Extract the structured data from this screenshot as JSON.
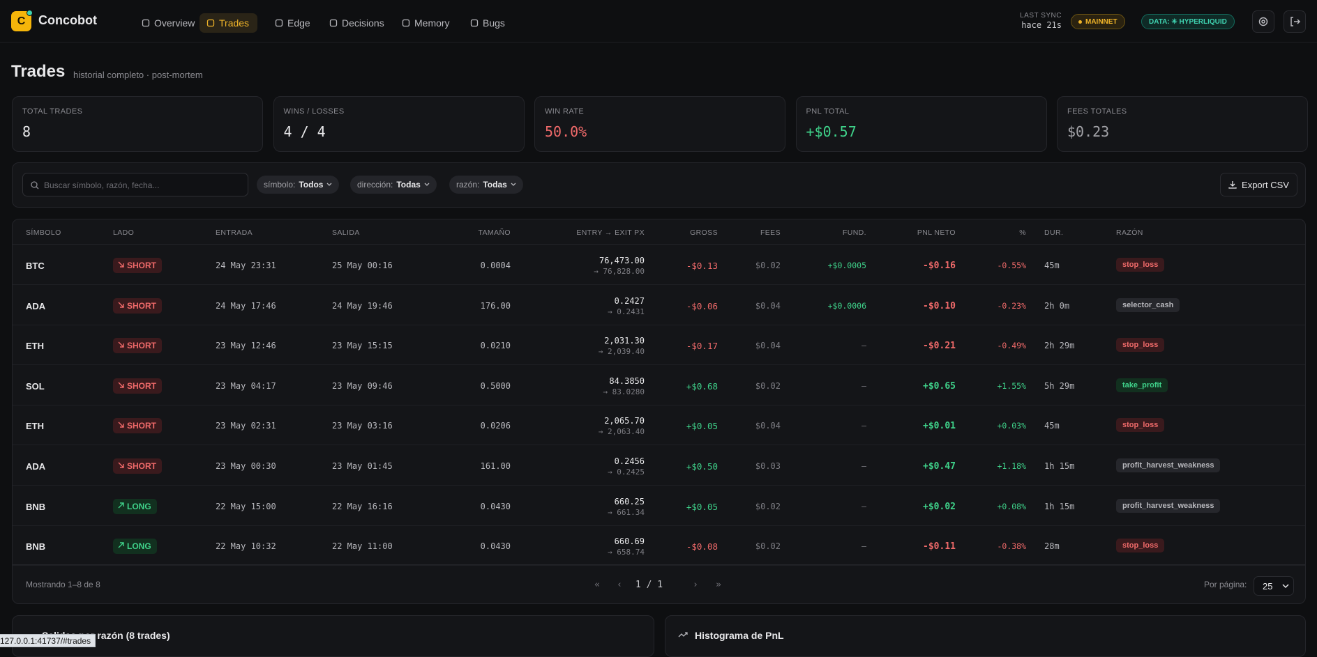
{
  "header": {
    "logo": "C",
    "brand": "Concobot",
    "nav": [
      "Overview",
      "Trades",
      "Edge",
      "Decisions",
      "Memory",
      "Bugs"
    ],
    "active_nav": 1,
    "sync_label": "LAST SYNC",
    "sync_value": "hace 21s",
    "network_badge": "MAINNET",
    "data_badge": "DATA: ✳ HYPERLIQUID"
  },
  "page": {
    "title": "Trades",
    "subtitle": "historial completo · post-mortem"
  },
  "stats": [
    {
      "label": "TOTAL TRADES",
      "value": "8",
      "color": "#e8e8ea"
    },
    {
      "label": "WINS / LOSSES",
      "value": "4 / 4",
      "color": "#e8e8ea"
    },
    {
      "label": "WIN RATE",
      "value": "50.0%",
      "color": "#f06a6a"
    },
    {
      "label": "PNL TOTAL",
      "value": "+$0.57",
      "color": "#3fd28a"
    },
    {
      "label": "FEES TOTALES",
      "value": "$0.23",
      "color": "#a3a3a8"
    }
  ],
  "filters": {
    "search_placeholder": "Buscar símbolo, razón, fecha...",
    "selects": [
      {
        "label": "símbolo:",
        "value": "Todos"
      },
      {
        "label": "dirección:",
        "value": "Todas"
      },
      {
        "label": "razón:",
        "value": "Todas"
      }
    ],
    "export": "Export CSV"
  },
  "table": {
    "columns": [
      "SÍMBOLO",
      "LADO",
      "ENTRADA",
      "SALIDA",
      "TAMAÑO",
      "ENTRY → EXIT PX",
      "GROSS",
      "FEES",
      "FUND.",
      "PNL NETO",
      "%",
      "DUR.",
      "RAZÓN"
    ],
    "badge_colors": {
      "SHORT": "red",
      "LONG": "green",
      "stop_loss": "red",
      "take_profit": "green"
    },
    "rows": [
      [
        "BTC",
        "SHORT",
        "24 May 23:31",
        "25 May 00:16",
        "0.0004",
        "76,473.00",
        "→ 76,828.00",
        "-$0.13",
        "$0.02",
        "+$0.0005",
        "-$0.16",
        "-0.55%",
        "45m",
        "stop_loss"
      ],
      [
        "ADA",
        "SHORT",
        "24 May 17:46",
        "24 May 19:46",
        "176.00",
        "0.2427",
        "→ 0.2431",
        "-$0.06",
        "$0.04",
        "+$0.0006",
        "-$0.10",
        "-0.23%",
        "2h 0m",
        "selector_cash"
      ],
      [
        "ETH",
        "SHORT",
        "23 May 12:46",
        "23 May 15:15",
        "0.0210",
        "2,031.30",
        "→ 2,039.40",
        "-$0.17",
        "$0.04",
        "—",
        "-$0.21",
        "-0.49%",
        "2h 29m",
        "stop_loss"
      ],
      [
        "SOL",
        "SHORT",
        "23 May 04:17",
        "23 May 09:46",
        "0.5000",
        "84.3850",
        "→ 83.0280",
        "+$0.68",
        "$0.02",
        "—",
        "+$0.65",
        "+1.55%",
        "5h 29m",
        "take_profit"
      ],
      [
        "ETH",
        "SHORT",
        "23 May 02:31",
        "23 May 03:16",
        "0.0206",
        "2,065.70",
        "→ 2,063.40",
        "+$0.05",
        "$0.04",
        "—",
        "+$0.01",
        "+0.03%",
        "45m",
        "stop_loss"
      ],
      [
        "ADA",
        "SHORT",
        "23 May 00:30",
        "23 May 01:45",
        "161.00",
        "0.2456",
        "→ 0.2425",
        "+$0.50",
        "$0.03",
        "—",
        "+$0.47",
        "+1.18%",
        "1h 15m",
        "profit_harvest_weakness"
      ],
      [
        "BNB",
        "LONG",
        "22 May 15:00",
        "22 May 16:16",
        "0.0430",
        "660.25",
        "→ 661.34",
        "+$0.05",
        "$0.02",
        "—",
        "+$0.02",
        "+0.08%",
        "1h 15m",
        "profit_harvest_weakness"
      ],
      [
        "BNB",
        "LONG",
        "22 May 10:32",
        "22 May 11:00",
        "0.0430",
        "660.69",
        "→ 658.74",
        "-$0.08",
        "$0.02",
        "—",
        "-$0.11",
        "-0.38%",
        "28m",
        "stop_loss"
      ]
    ],
    "footer": {
      "showing": "Mostrando 1–8 de 8",
      "pager": [
        "«",
        "‹",
        "1 / 1",
        "›",
        "»"
      ],
      "per_page_label": "Por página:",
      "per_page": "25"
    }
  },
  "panels": [
    "Salidas por razón (8 trades)",
    "Histograma de PnL"
  ],
  "status_bar": "127.0.0.1:41737/#trades"
}
